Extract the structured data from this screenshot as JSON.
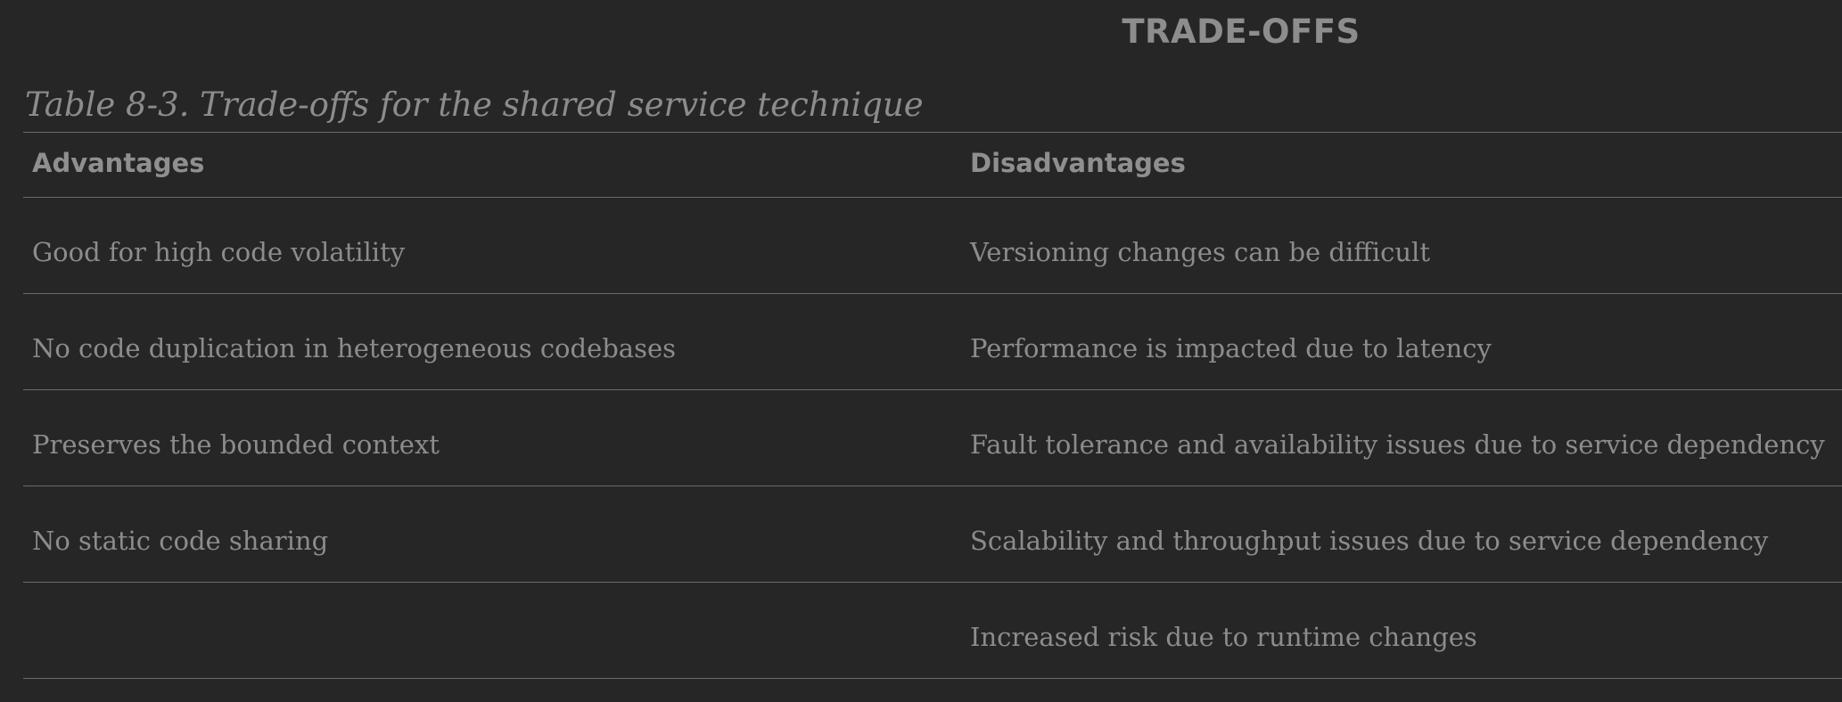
{
  "section": {
    "title": "TRADE-OFFS"
  },
  "table": {
    "caption": "Table 8-3. Trade-offs for the shared service technique",
    "headers": {
      "advantages": "Advantages",
      "disadvantages": "Disadvantages"
    },
    "rows": [
      {
        "advantage": "Good for high code volatility",
        "disadvantage": "Versioning changes can be difficult"
      },
      {
        "advantage": "No code duplication in heterogeneous codebases",
        "disadvantage": "Performance is impacted due to latency"
      },
      {
        "advantage": "Preserves the bounded context",
        "disadvantage": "Fault tolerance and availability issues due to service dependency"
      },
      {
        "advantage": "No static code sharing",
        "disadvantage": "Scalability and throughput issues due to service dependency"
      },
      {
        "advantage": "",
        "disadvantage": "Increased risk due to runtime changes"
      }
    ]
  }
}
